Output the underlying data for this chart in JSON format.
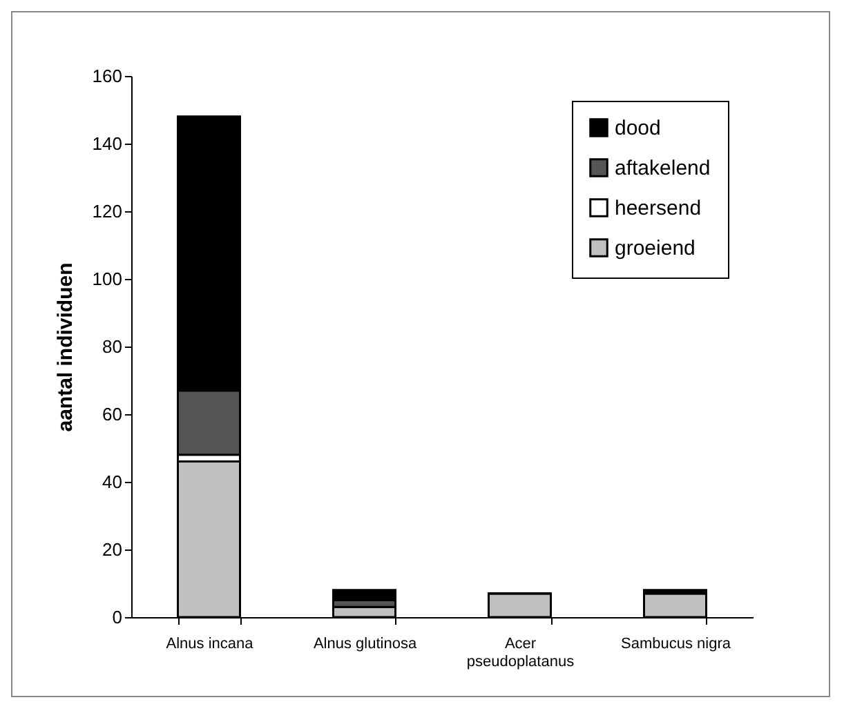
{
  "chart_data": {
    "type": "bar",
    "stacked": true,
    "ylabel": "aantal individuen",
    "categories": [
      "Alnus incana",
      "Alnus glutinosa",
      "Acer pseudoplatanus",
      "Sambucus nigra"
    ],
    "series": [
      {
        "name": "groeiend",
        "color": "#c0c0c0",
        "values": [
          46,
          3,
          7,
          7
        ]
      },
      {
        "name": "heersend",
        "color": "#ffffff",
        "values": [
          2,
          0,
          0,
          0
        ]
      },
      {
        "name": "aftakelend",
        "color": "#555555",
        "values": [
          19,
          2,
          0,
          0
        ]
      },
      {
        "name": "dood",
        "color": "#000000",
        "values": [
          81,
          3,
          0,
          1
        ]
      }
    ],
    "ylim": [
      0,
      160
    ],
    "yticks": [
      0,
      20,
      40,
      60,
      80,
      100,
      120,
      140,
      160
    ],
    "grid": false,
    "legend": "top right"
  }
}
